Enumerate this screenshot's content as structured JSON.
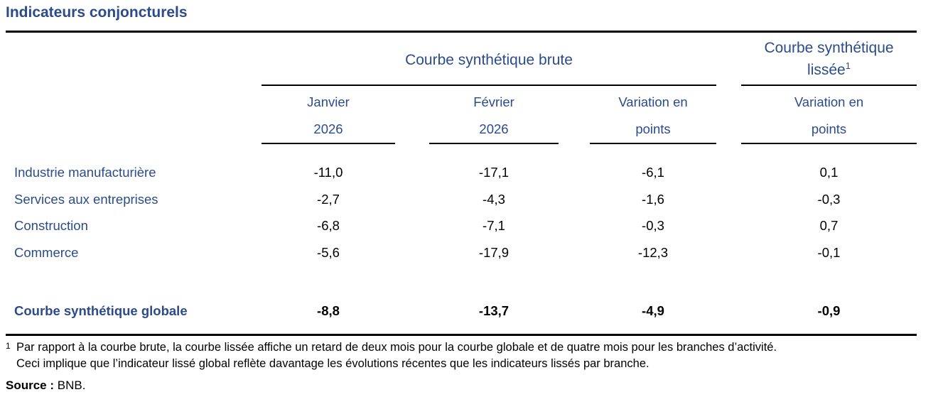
{
  "title": "Indicateurs conjoncturels",
  "colors": {
    "accent_blue": "#2C4B8C",
    "rule_black": "#000000"
  },
  "table": {
    "group_headers": [
      {
        "label": "Courbe synthétique brute"
      },
      {
        "label_line1": "Courbe synthétique",
        "label_line2": "lissée",
        "sup": "1"
      }
    ],
    "column_headers": [
      {
        "line1": "Janvier",
        "line2": "2026"
      },
      {
        "line1": "Février",
        "line2": "2026"
      },
      {
        "line1": "Variation en",
        "line2": "points"
      },
      {
        "line1": "Variation en",
        "line2": "points"
      }
    ],
    "rows": [
      {
        "label": "Industrie manufacturière",
        "values": [
          "-11,0",
          "-17,1",
          "-6,1",
          "0,1"
        ]
      },
      {
        "label": "Services aux entreprises",
        "values": [
          "-2,7",
          "-4,3",
          "-1,6",
          "-0,3"
        ]
      },
      {
        "label": "Construction",
        "values": [
          "-6,8",
          "-7,1",
          "-0,3",
          "0,7"
        ]
      },
      {
        "label": "Commerce",
        "values": [
          "-5,6",
          "-17,9",
          "-12,3",
          "-0,1"
        ]
      }
    ],
    "total_row": {
      "label": "Courbe synthétique globale",
      "values": [
        "-8,8",
        "-13,7",
        "-4,9",
        "-0,9"
      ]
    }
  },
  "chart_data": {
    "type": "table",
    "title": "Indicateurs conjoncturels",
    "columns": [
      "Courbe synthétique brute — Janvier 2026",
      "Courbe synthétique brute — Février 2026",
      "Courbe synthétique brute — Variation en points",
      "Courbe synthétique lissée — Variation en points"
    ],
    "rows": [
      {
        "label": "Industrie manufacturière",
        "values": [
          -11.0,
          -17.1,
          -6.1,
          0.1
        ]
      },
      {
        "label": "Services aux entreprises",
        "values": [
          -2.7,
          -4.3,
          -1.6,
          -0.3
        ]
      },
      {
        "label": "Construction",
        "values": [
          -6.8,
          -7.1,
          -0.3,
          0.7
        ]
      },
      {
        "label": "Commerce",
        "values": [
          -5.6,
          -17.9,
          -12.3,
          -0.1
        ]
      },
      {
        "label": "Courbe synthétique globale",
        "values": [
          -8.8,
          -13.7,
          -4.9,
          -0.9
        ]
      }
    ]
  },
  "footnote": {
    "marker": "1",
    "line1": "Par rapport à la courbe brute, la courbe lissée affiche un retard de deux mois pour la courbe globale et de quatre mois pour les branches d’activité.",
    "line2": "Ceci implique que l’indicateur lissé global reflète davantage les évolutions récentes que les indicateurs lissés par branche."
  },
  "source": {
    "label": "Source :",
    "value": "BNB."
  }
}
